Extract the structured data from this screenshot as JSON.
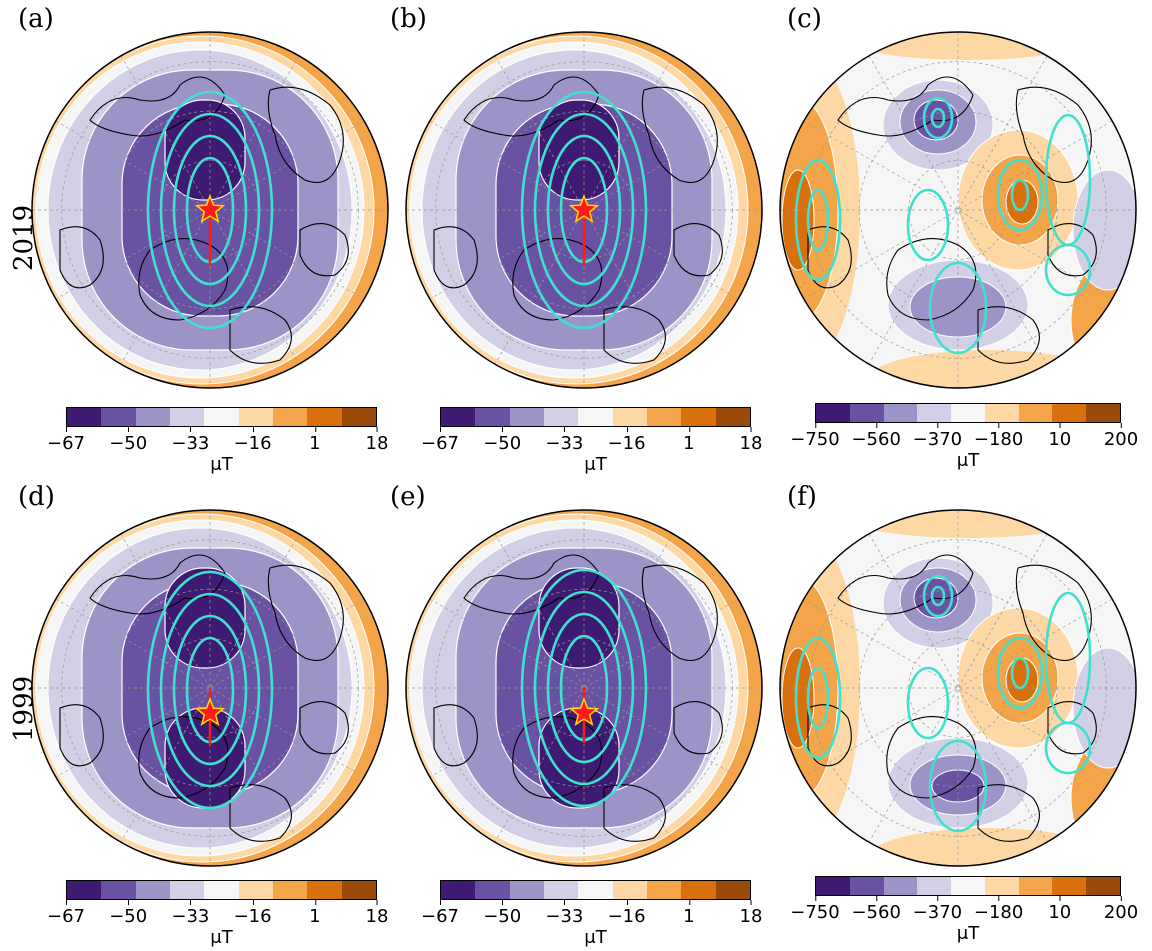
{
  "row_labels": [
    "2019",
    "1999"
  ],
  "colors": {
    "diverging": [
      "#3f1a73",
      "#6a52a3",
      "#9c94c6",
      "#d1d0e6",
      "#f6f6f6",
      "#fdd7a4",
      "#f4a54a",
      "#d9700e",
      "#9a4a08"
    ],
    "contour_white": "#ffffff",
    "contour_cyan": "#40e0d0",
    "star_fill": "#ff1a1a",
    "star_edge": "#ffd700",
    "coast": "#000000",
    "grid": "#999999"
  },
  "panels": [
    {
      "label": "(a)",
      "kind": "total",
      "cbar_ticks": [
        "−67",
        "−50",
        "−33",
        "−16",
        "1",
        "18"
      ],
      "unit": "μT",
      "star": true
    },
    {
      "label": "(b)",
      "kind": "total",
      "cbar_ticks": [
        "−67",
        "−50",
        "−33",
        "−16",
        "1",
        "18"
      ],
      "unit": "μT",
      "star": true
    },
    {
      "label": "(c)",
      "kind": "anomaly",
      "cbar_ticks": [
        "−750",
        "−560",
        "−370",
        "−180",
        "10",
        "200"
      ],
      "unit": "μT",
      "star": false
    },
    {
      "label": "(d)",
      "kind": "total",
      "cbar_ticks": [
        "−67",
        "−50",
        "−33",
        "−16",
        "1",
        "18"
      ],
      "unit": "μT",
      "star": true
    },
    {
      "label": "(e)",
      "kind": "total",
      "cbar_ticks": [
        "−67",
        "−50",
        "−33",
        "−16",
        "1",
        "18"
      ],
      "unit": "μT",
      "star": true
    },
    {
      "label": "(f)",
      "kind": "anomaly",
      "cbar_ticks": [
        "−750",
        "−560",
        "−370",
        "−180",
        "10",
        "200"
      ],
      "unit": "μT",
      "star": false
    }
  ]
}
